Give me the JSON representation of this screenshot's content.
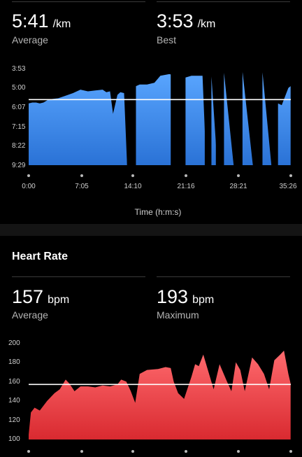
{
  "pace": {
    "stats": [
      {
        "value": "5:41",
        "unit": "/km",
        "label": "Average"
      },
      {
        "value": "3:53",
        "unit": "/km",
        "label": "Best"
      }
    ],
    "chart_data": {
      "type": "area",
      "series_color": "#3d8ef0",
      "reference_line": "average",
      "y_tick_labels": [
        "3:53",
        "5:00",
        "6:07",
        "7:15",
        "8:22",
        "9:29"
      ],
      "x_tick_labels": [
        "0:00",
        "7:05",
        "14:10",
        "21:16",
        "28:21",
        "35:26"
      ],
      "x_axis_title": "Time (h:m:s)",
      "y_inverted": true,
      "ylim_minutes": [
        3.88,
        9.48
      ],
      "average_minutes": 5.68,
      "x_minutes": [
        0,
        0.5,
        1,
        1.5,
        2,
        2.6,
        3,
        4,
        5,
        6,
        7,
        8,
        9,
        10,
        10.5,
        11,
        11.4,
        12,
        12.4,
        12.9,
        13.3,
        14.5,
        15,
        16,
        17,
        17.8,
        19,
        21.2,
        22,
        23.5,
        24,
        24.7,
        25.5,
        26.4,
        27.7,
        28.9,
        30.3,
        31.6,
        32.8,
        33.7,
        34.2,
        35.1,
        35.4
      ],
      "y_minutes": [
        5.9,
        5.85,
        5.85,
        5.9,
        5.85,
        5.7,
        5.65,
        5.6,
        5.45,
        5.3,
        5.1,
        5.2,
        5.15,
        5.1,
        5.25,
        5.2,
        6.5,
        5.4,
        5.25,
        5.3,
        9.48,
        4.9,
        4.8,
        4.8,
        4.7,
        4.3,
        4.2,
        4.4,
        4.3,
        4.3,
        9.48,
        4.3,
        9.48,
        4.1,
        9.48,
        4.05,
        9.48,
        4.1,
        9.48,
        5.9,
        6.0,
        5.0,
        4.9
      ],
      "gaps_minutes": [
        [
          13.3,
          14.5
        ],
        [
          19.2,
          21.2
        ],
        [
          23.8,
          24.7
        ],
        [
          25.3,
          26.4
        ],
        [
          27.7,
          28.9
        ],
        [
          30.3,
          31.6
        ],
        [
          32.8,
          33.7
        ]
      ]
    }
  },
  "heart_rate": {
    "title": "Heart Rate",
    "stats": [
      {
        "value": "157",
        "unit": "bpm",
        "label": "Average"
      },
      {
        "value": "193",
        "unit": "bpm",
        "label": "Maximum"
      }
    ],
    "chart_data": {
      "type": "area",
      "series_color": "#e8393f",
      "reference_line": "average",
      "y_tick_labels": [
        "200",
        "180",
        "160",
        "140",
        "120",
        "100"
      ],
      "ylim": [
        100,
        200
      ],
      "average": 157,
      "x_minutes": [
        0,
        0.3,
        0.8,
        1.5,
        2.5,
        3.5,
        4.2,
        5,
        5.5,
        6.2,
        7,
        8,
        9,
        10,
        11,
        12,
        12.5,
        13.2,
        13.8,
        14.4,
        15,
        16,
        17.5,
        18.5,
        19.2,
        19.6,
        20.2,
        21,
        22,
        22.5,
        23,
        23.6,
        24.3,
        25,
        25.8,
        26.8,
        27.4,
        28,
        28.6,
        29.2,
        30.2,
        31,
        31.8,
        32.5,
        33.2,
        34,
        34.5,
        35.1,
        35.4
      ],
      "y": [
        105,
        128,
        133,
        130,
        140,
        148,
        152,
        162,
        158,
        150,
        155,
        155,
        154,
        156,
        155,
        157,
        162,
        160,
        150,
        138,
        168,
        172,
        173,
        175,
        174,
        160,
        148,
        142,
        165,
        178,
        176,
        188,
        170,
        152,
        178,
        160,
        150,
        180,
        172,
        150,
        185,
        178,
        168,
        152,
        182,
        188,
        192,
        168,
        158
      ]
    }
  }
}
